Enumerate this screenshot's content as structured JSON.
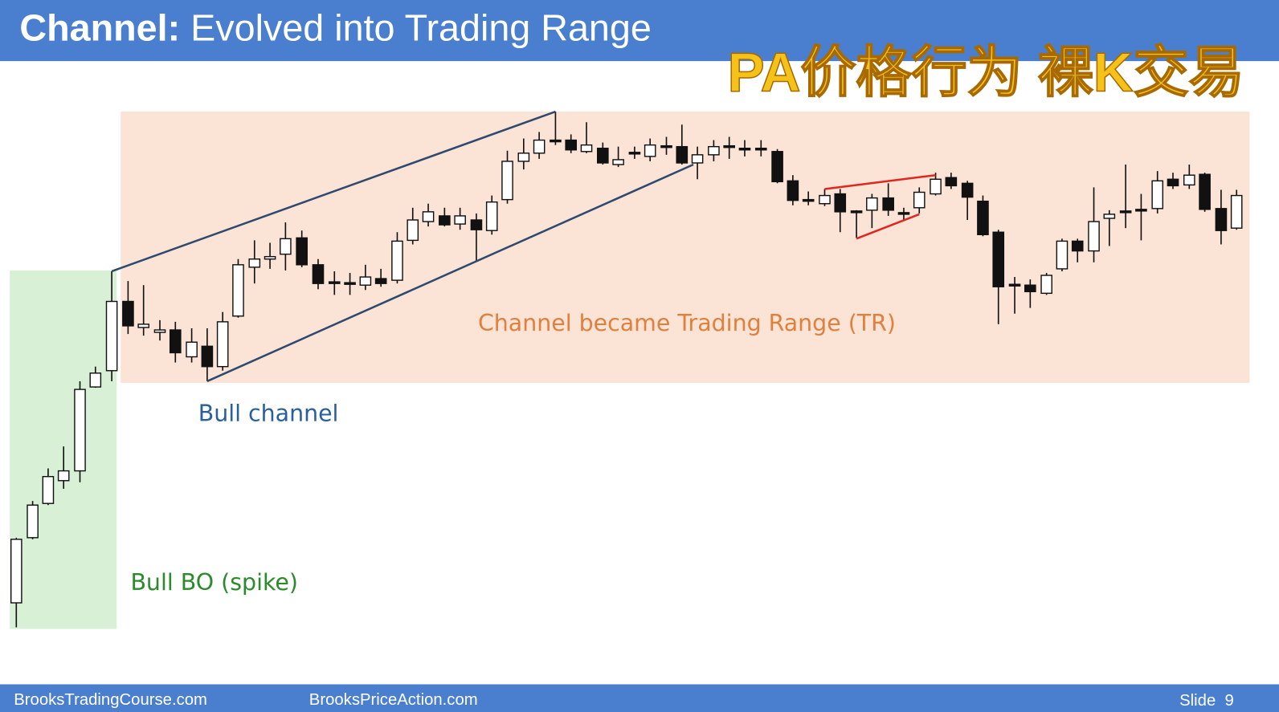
{
  "header": {
    "title_bold": "Channel:",
    "title_rest": "Evolved into Trading Range"
  },
  "watermark": "PA价格行为  裸K交易",
  "annotations": {
    "trading_range": "Channel became Trading Range (TR)",
    "bull_channel": "Bull channel",
    "bull_bo": "Bull BO (spike)"
  },
  "footer": {
    "left": "BrooksTradingCourse.com",
    "center": "BrooksPriceAction.com",
    "right": "Slide  9"
  }
}
